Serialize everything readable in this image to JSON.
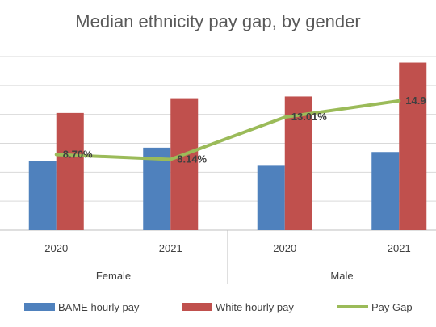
{
  "chart_data": {
    "type": "bar",
    "title": "Median ethnicity pay gap, by gender",
    "groups": [
      {
        "label": "Female",
        "categories": [
          "2020",
          "2021"
        ]
      },
      {
        "label": "Male",
        "categories": [
          "2020",
          "2021"
        ]
      }
    ],
    "categories": [
      "2020",
      "2021",
      "2020",
      "2021"
    ],
    "series": [
      {
        "name": "BAME hourly pay",
        "kind": "bar",
        "color": "#4f81bd",
        "values": [
          8.0,
          9.5,
          7.5,
          9.0
        ]
      },
      {
        "name": "White hourly pay",
        "kind": "bar",
        "color": "#c0504d",
        "values": [
          13.5,
          15.2,
          15.4,
          19.3
        ]
      },
      {
        "name": "Pay Gap",
        "kind": "line",
        "color": "#9bbb59",
        "values": [
          8.7,
          8.14,
          13.01,
          14.9
        ],
        "labels": [
          "8.70%",
          "8.14%",
          "13.01%",
          "14.9"
        ]
      }
    ],
    "ylim": [
      0,
      20
    ],
    "y_gridlines": 6,
    "grid": true,
    "legend": "bottom",
    "xlabel": "",
    "ylabel": ""
  }
}
